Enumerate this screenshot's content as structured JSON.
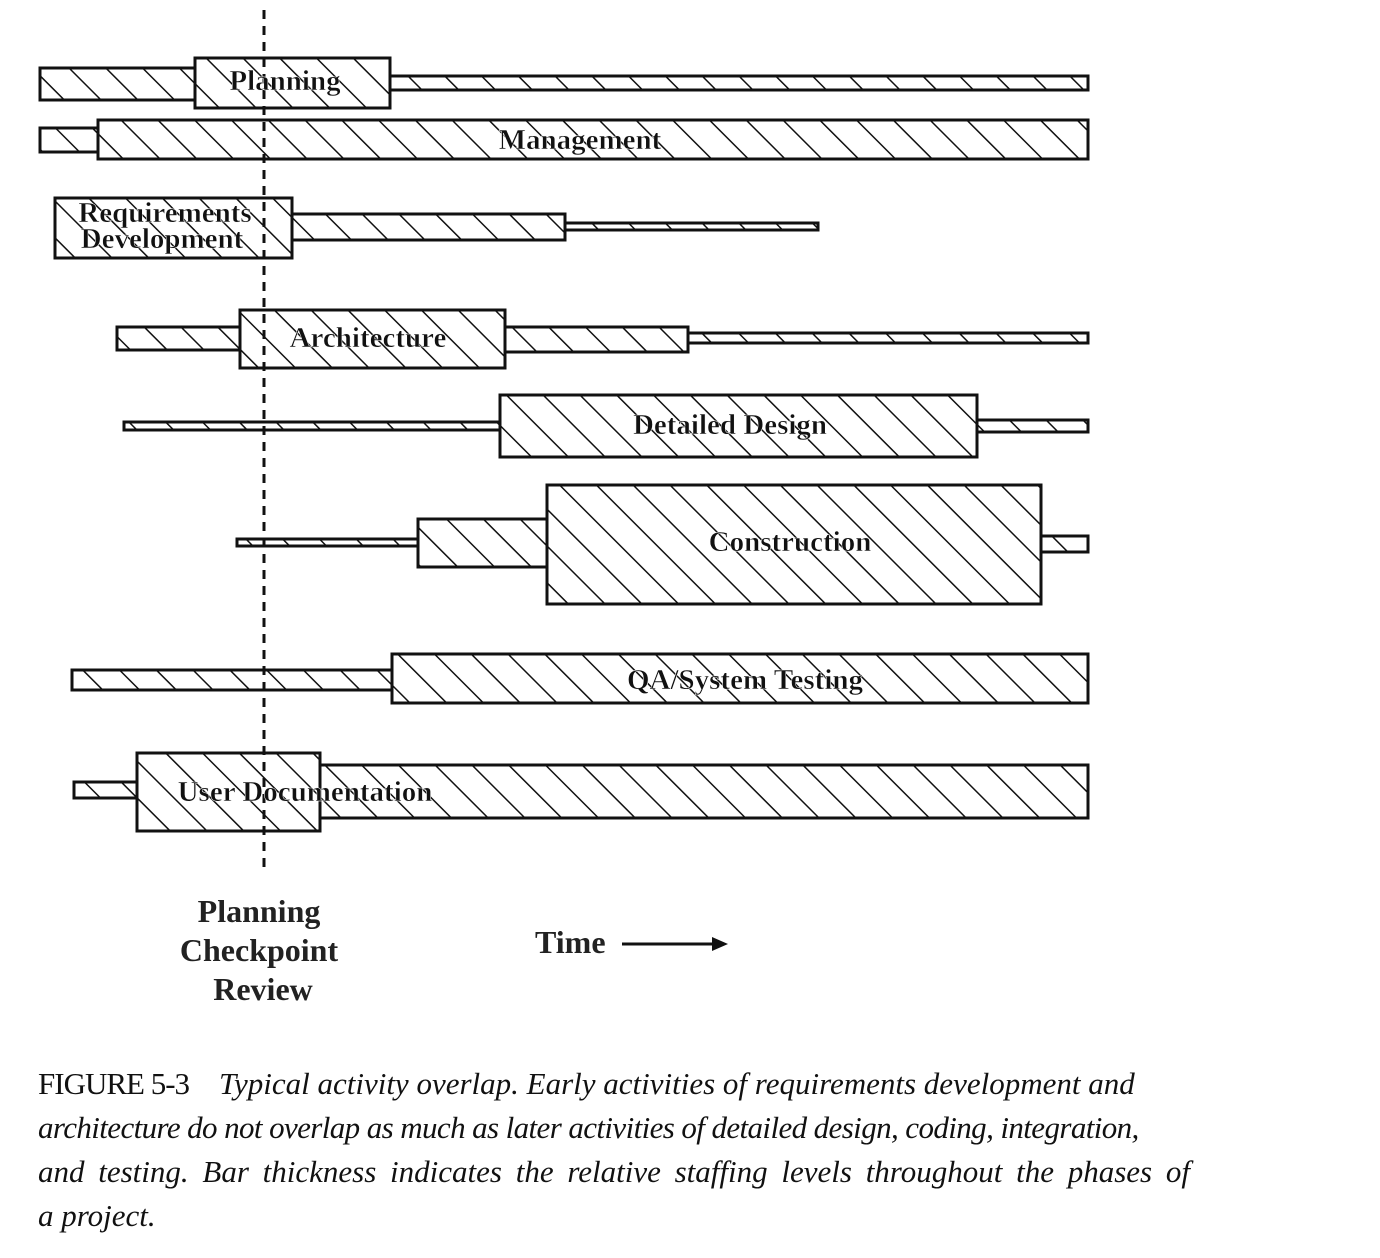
{
  "figure": {
    "activities": [
      {
        "id": "planning",
        "label": [
          "Planning"
        ]
      },
      {
        "id": "management",
        "label": [
          "Management"
        ]
      },
      {
        "id": "requirements",
        "label": [
          "Requirements",
          "Development"
        ]
      },
      {
        "id": "architecture",
        "label": [
          "Architecture"
        ]
      },
      {
        "id": "detailed-design",
        "label": [
          "Detailed Design"
        ]
      },
      {
        "id": "construction",
        "label": [
          "Construction"
        ]
      },
      {
        "id": "qa",
        "label": [
          "QA/System Testing"
        ]
      },
      {
        "id": "user-doc",
        "label": [
          "User Documentation"
        ]
      }
    ],
    "checkpoint_label": [
      "Planning",
      "Checkpoint",
      "Review"
    ],
    "time_label": "Time",
    "hatch": "diagonal",
    "line_color": "#111111"
  },
  "caption": {
    "number": "FIGURE 5-3",
    "lines": [
      "Typical activity overlap. Early activities of requirements development and",
      "architecture do not overlap as much as later activities of detailed design, coding, integration,",
      "and testing. Bar thickness indicates the relative staffing levels throughout the phases of",
      "a project."
    ]
  }
}
